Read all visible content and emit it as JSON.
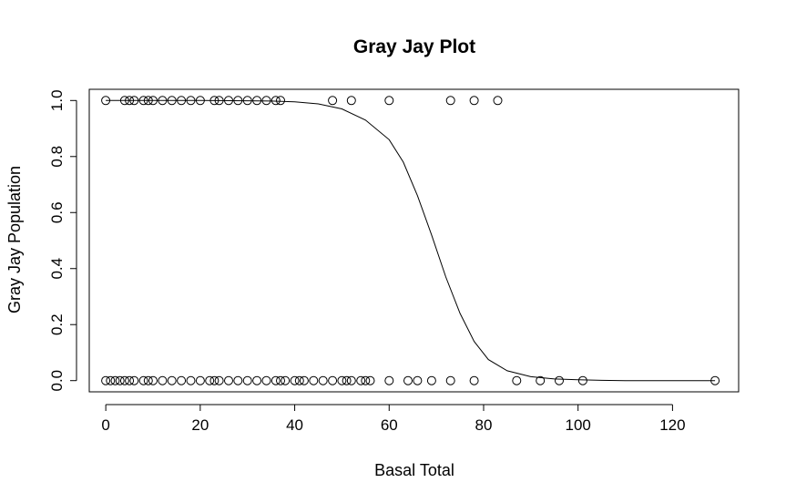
{
  "chart_data": {
    "type": "scatter",
    "title": "Gray Jay Plot",
    "xlabel": "Basal Total",
    "ylabel": "Gray Jay Population",
    "xlim": [
      -3.5,
      134
    ],
    "ylim": [
      -0.04,
      1.04
    ],
    "xticks": [
      0,
      20,
      40,
      60,
      80,
      100,
      120
    ],
    "xtick_labels": [
      "0",
      "20",
      "40",
      "60",
      "80",
      "100",
      "120"
    ],
    "yticks": [
      0.0,
      0.2,
      0.4,
      0.6,
      0.8,
      1.0
    ],
    "ytick_labels": [
      "0.0",
      "0.2",
      "0.4",
      "0.6",
      "0.8",
      "1.0"
    ],
    "grid": false,
    "series": [
      {
        "marker": "open-circle",
        "x": [
          0,
          4,
          5,
          6,
          8,
          9,
          10,
          12,
          14,
          16,
          18,
          20,
          23,
          24,
          26,
          28,
          30,
          32,
          34,
          36,
          37,
          48,
          52,
          60,
          73,
          78,
          83,
          0,
          1,
          2,
          3,
          4,
          5,
          6,
          8,
          9,
          10,
          12,
          14,
          16,
          18,
          20,
          22,
          23,
          24,
          26,
          28,
          30,
          32,
          34,
          36,
          37,
          38,
          40,
          41,
          42,
          44,
          46,
          48,
          50,
          51,
          52,
          54,
          55,
          56,
          60,
          64,
          66,
          69,
          73,
          78,
          87,
          92,
          96,
          101,
          129
        ],
        "y": [
          1,
          1,
          1,
          1,
          1,
          1,
          1,
          1,
          1,
          1,
          1,
          1,
          1,
          1,
          1,
          1,
          1,
          1,
          1,
          1,
          1,
          1,
          1,
          1,
          1,
          1,
          1,
          0,
          0,
          0,
          0,
          0,
          0,
          0,
          0,
          0,
          0,
          0,
          0,
          0,
          0,
          0,
          0,
          0,
          0,
          0,
          0,
          0,
          0,
          0,
          0,
          0,
          0,
          0,
          0,
          0,
          0,
          0,
          0,
          0,
          0,
          0,
          0,
          0,
          0,
          0,
          0,
          0,
          0,
          0,
          0,
          0,
          0,
          0,
          0,
          0
        ]
      },
      {
        "type": "line",
        "x": [
          0,
          10,
          20,
          30,
          35,
          40,
          45,
          50,
          55,
          60,
          63,
          66,
          69,
          72,
          75,
          78,
          81,
          85,
          90,
          95,
          100,
          105,
          110,
          120,
          129
        ],
        "y": [
          1.0,
          1.0,
          1.0,
          0.999,
          0.998,
          0.995,
          0.988,
          0.97,
          0.93,
          0.86,
          0.78,
          0.66,
          0.52,
          0.37,
          0.24,
          0.14,
          0.075,
          0.035,
          0.014,
          0.006,
          0.003,
          0.001,
          0.0,
          0.0,
          0.0
        ]
      }
    ]
  }
}
